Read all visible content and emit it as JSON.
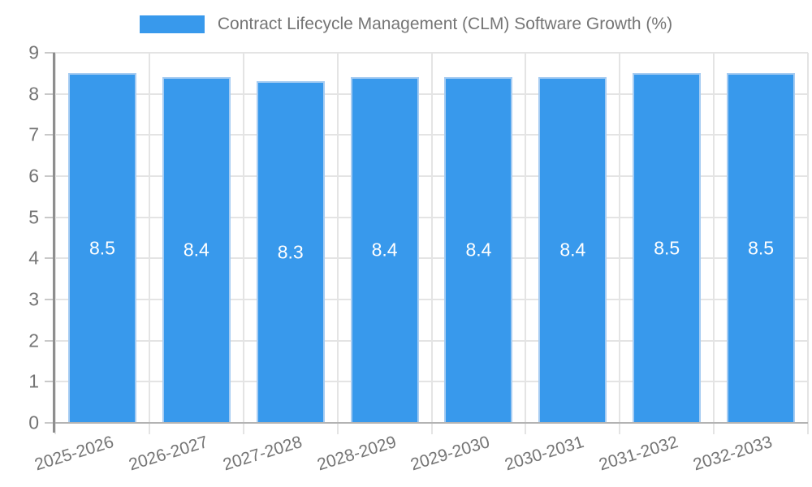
{
  "legend": {
    "label": "Contract Lifecycle Management (CLM) Software Growth (%)"
  },
  "chart_data": {
    "type": "bar",
    "title": "Contract Lifecycle Management (CLM) Software Growth (%)",
    "categories": [
      "2025-2026",
      "2026-2027",
      "2027-2028",
      "2028-2029",
      "2029-2030",
      "2030-2031",
      "2031-2032",
      "2032-2033"
    ],
    "values": [
      8.5,
      8.4,
      8.3,
      8.4,
      8.4,
      8.4,
      8.5,
      8.5
    ],
    "value_labels": [
      "8.5",
      "8.4",
      "8.3",
      "8.4",
      "8.4",
      "8.4",
      "8.5",
      "8.5"
    ],
    "xlabel": "",
    "ylabel": "",
    "ylim": [
      0,
      9
    ],
    "yticks": [
      0,
      1,
      2,
      3,
      4,
      5,
      6,
      7,
      8,
      9
    ],
    "grid": true,
    "legend_position": "top",
    "colors": {
      "bar_fill": "#3899EC",
      "bar_border": "#A6CCF2",
      "grid": "#E4E4E4",
      "zero_line": "#B3B3B3",
      "axis_line": "#8E8E8E",
      "tick_mark": "#C9C9C9",
      "text": "#757575",
      "bar_label_text": "#FFFFFF"
    }
  }
}
